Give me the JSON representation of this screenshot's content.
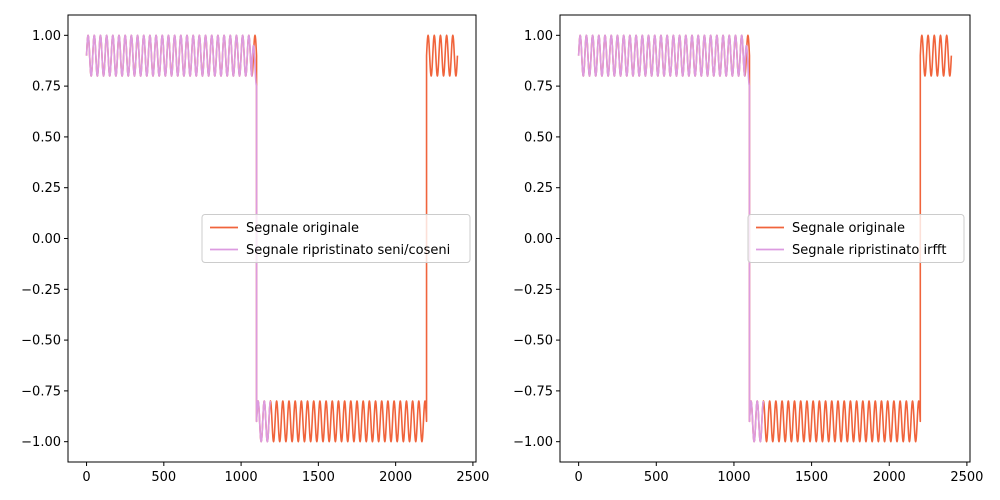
{
  "chart_data": [
    {
      "type": "line",
      "title": "",
      "xlabel": "",
      "ylabel": "",
      "xlim": [
        -120,
        2520
      ],
      "ylim": [
        -1.1,
        1.1
      ],
      "xticks": [
        0,
        500,
        1000,
        1500,
        2000,
        2500
      ],
      "xtick_labels": [
        "0",
        "500",
        "1000",
        "1500",
        "2000",
        "2500"
      ],
      "yticks": [
        1.0,
        0.75,
        0.5,
        0.25,
        0.0,
        -0.25,
        -0.5,
        -0.75,
        -1.0
      ],
      "ytick_labels": [
        "1.00",
        "0.75",
        "0.50",
        "0.25",
        "0.00",
        "−0.25",
        "−0.50",
        "−0.75",
        "−1.00"
      ],
      "grid": false,
      "legend_position": "center-right",
      "series": [
        {
          "name": "Segnale originale",
          "color": "#f0643c",
          "segments": [
            {
              "x_start": 0,
              "x_end": 1100,
              "center": 0.9,
              "amplitude": 0.1,
              "period": 40
            },
            {
              "x_start": 1100,
              "x_end": 2200,
              "center": -0.9,
              "amplitude": 0.1,
              "period": 40
            },
            {
              "x_start": 2200,
              "x_end": 2400,
              "center": 0.9,
              "amplitude": 0.1,
              "period": 40
            }
          ]
        },
        {
          "name": "Segnale ripristinato seni/coseni",
          "color": "#dc9be0",
          "segments": [
            {
              "x_start": 0,
              "x_end": 1070,
              "center": 0.9,
              "amplitude": 0.1,
              "period": 40
            },
            {
              "x_start": 1070,
              "x_end": 1100,
              "center": 0.85,
              "amplitude": 0.1,
              "period": 40
            },
            {
              "x_start": 1100,
              "x_end": 1190,
              "center": -0.9,
              "amplitude": 0.1,
              "period": 40
            }
          ]
        }
      ]
    },
    {
      "type": "line",
      "title": "",
      "xlabel": "",
      "ylabel": "",
      "xlim": [
        -120,
        2520
      ],
      "ylim": [
        -1.1,
        1.1
      ],
      "xticks": [
        0,
        500,
        1000,
        1500,
        2000,
        2500
      ],
      "xtick_labels": [
        "0",
        "500",
        "1000",
        "1500",
        "2000",
        "2500"
      ],
      "yticks": [
        1.0,
        0.75,
        0.5,
        0.25,
        0.0,
        -0.25,
        -0.5,
        -0.75,
        -1.0
      ],
      "ytick_labels": [
        "1.00",
        "0.75",
        "0.50",
        "0.25",
        "0.00",
        "−0.25",
        "−0.50",
        "−0.75",
        "−1.00"
      ],
      "grid": false,
      "legend_position": "center-right",
      "series": [
        {
          "name": "Segnale originale",
          "color": "#f0643c",
          "segments": [
            {
              "x_start": 0,
              "x_end": 1100,
              "center": 0.9,
              "amplitude": 0.1,
              "period": 40
            },
            {
              "x_start": 1100,
              "x_end": 2200,
              "center": -0.9,
              "amplitude": 0.1,
              "period": 40
            },
            {
              "x_start": 2200,
              "x_end": 2400,
              "center": 0.9,
              "amplitude": 0.1,
              "period": 40
            }
          ]
        },
        {
          "name": "Segnale ripristinato irfft",
          "color": "#dc9be0",
          "segments": [
            {
              "x_start": 0,
              "x_end": 1070,
              "center": 0.9,
              "amplitude": 0.1,
              "period": 40
            },
            {
              "x_start": 1070,
              "x_end": 1100,
              "center": 0.85,
              "amplitude": 0.1,
              "period": 40
            },
            {
              "x_start": 1100,
              "x_end": 1190,
              "center": -0.9,
              "amplitude": 0.1,
              "period": 40
            }
          ]
        }
      ]
    }
  ]
}
